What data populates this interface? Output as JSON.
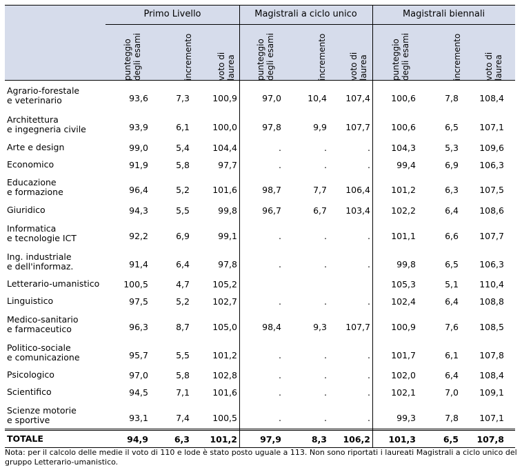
{
  "groups": [
    "Primo Livello",
    "Magistrali a ciclo unico",
    "Magistrali biennali"
  ],
  "subheaders": [
    "punteggio degli esami",
    "incremento",
    "voto di laurea"
  ],
  "rows": [
    {
      "label": [
        "Agrario-forestale",
        "e veterinario"
      ],
      "values": [
        "93,6",
        "7,3",
        "100,9",
        "97,0",
        "10,4",
        "107,4",
        "100,6",
        "7,8",
        "108,4"
      ]
    },
    {
      "label": [
        "Architettura",
        "e ingegneria civile"
      ],
      "values": [
        "93,9",
        "6,1",
        "100,0",
        "97,8",
        "9,9",
        "107,7",
        "100,6",
        "6,5",
        "107,1"
      ]
    },
    {
      "label": [
        "Arte e design"
      ],
      "values": [
        "99,0",
        "5,4",
        "104,4",
        ".",
        ".",
        ".",
        "104,3",
        "5,3",
        "109,6"
      ]
    },
    {
      "label": [
        "Economico"
      ],
      "values": [
        "91,9",
        "5,8",
        "97,7",
        ".",
        ".",
        ".",
        "99,4",
        "6,9",
        "106,3"
      ]
    },
    {
      "label": [
        "Educazione",
        "e formazione"
      ],
      "values": [
        "96,4",
        "5,2",
        "101,6",
        "98,7",
        "7,7",
        "106,4",
        "101,2",
        "6,3",
        "107,5"
      ]
    },
    {
      "label": [
        "Giuridico"
      ],
      "values": [
        "94,3",
        "5,5",
        "99,8",
        "96,7",
        "6,7",
        "103,4",
        "102,2",
        "6,4",
        "108,6"
      ]
    },
    {
      "label": [
        "Informatica",
        "e tecnologie ICT"
      ],
      "values": [
        "92,2",
        "6,9",
        "99,1",
        ".",
        ".",
        ".",
        "101,1",
        "6,6",
        "107,7"
      ]
    },
    {
      "label": [
        "Ing. industriale",
        "e dell'informaz."
      ],
      "values": [
        "91,4",
        "6,4",
        "97,8",
        ".",
        ".",
        ".",
        "99,8",
        "6,5",
        "106,3"
      ]
    },
    {
      "label": [
        "Letterario-umanistico"
      ],
      "values": [
        "100,5",
        "4,7",
        "105,2",
        "",
        "",
        "",
        "105,3",
        "5,1",
        "110,4"
      ]
    },
    {
      "label": [
        "Linguistico"
      ],
      "values": [
        "97,5",
        "5,2",
        "102,7",
        ".",
        ".",
        ".",
        "102,4",
        "6,4",
        "108,8"
      ]
    },
    {
      "label": [
        "Medico-sanitario",
        "e farmaceutico"
      ],
      "values": [
        "96,3",
        "8,7",
        "105,0",
        "98,4",
        "9,3",
        "107,7",
        "100,9",
        "7,6",
        "108,5"
      ]
    },
    {
      "label": [
        "Politico-sociale",
        "e comunicazione"
      ],
      "values": [
        "95,7",
        "5,5",
        "101,2",
        ".",
        ".",
        ".",
        "101,7",
        "6,1",
        "107,8"
      ]
    },
    {
      "label": [
        "Psicologico"
      ],
      "values": [
        "97,0",
        "5,8",
        "102,8",
        ".",
        ".",
        ".",
        "102,0",
        "6,4",
        "108,4"
      ]
    },
    {
      "label": [
        "Scientifico"
      ],
      "values": [
        "94,5",
        "7,1",
        "101,6",
        ".",
        ".",
        ".",
        "102,1",
        "7,0",
        "109,1"
      ]
    },
    {
      "label": [
        "Scienze motorie",
        "e sportive"
      ],
      "values": [
        "93,1",
        "7,4",
        "100,5",
        ".",
        ".",
        ".",
        "99,3",
        "7,8",
        "107,1"
      ]
    }
  ],
  "total": {
    "label": "TOTALE",
    "values": [
      "94,9",
      "6,3",
      "101,2",
      "97,9",
      "8,3",
      "106,2",
      "101,3",
      "6,5",
      "107,8"
    ]
  },
  "note": "Nota: per il calcolo delle medie il voto di 110 e lode è stato posto uguale a 113. Non sono riportati i laureati Magistrali a ciclo unico del gruppo Letterario-umanistico."
}
